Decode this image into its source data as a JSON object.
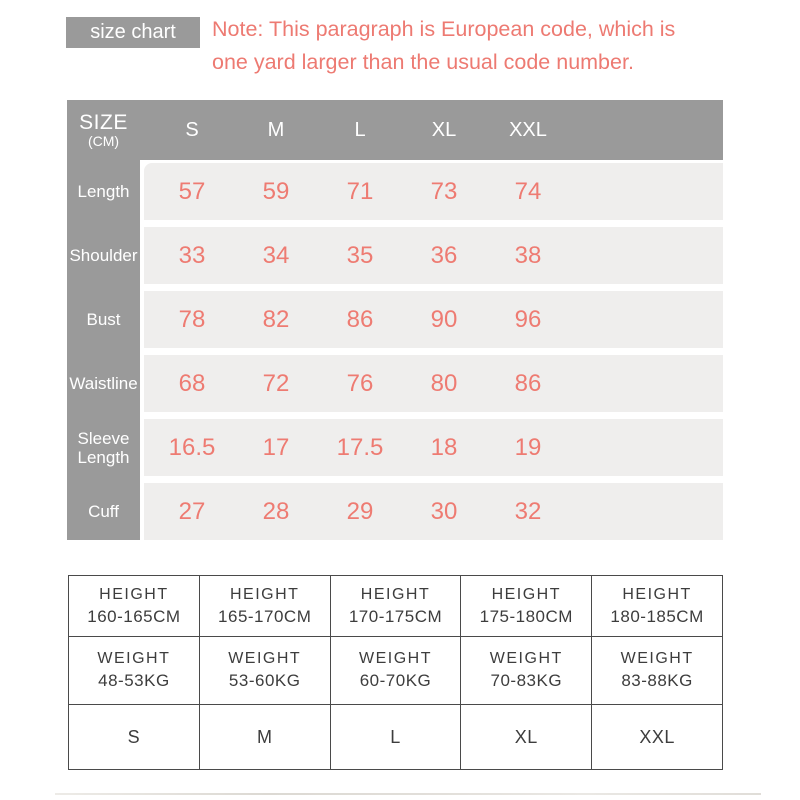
{
  "header": {
    "badge": "size chart",
    "note_line1": "Note: This paragraph is European code, which is",
    "note_line2": "one yard larger than the usual code number."
  },
  "size_table": {
    "corner_title": "SIZE",
    "corner_subtitle": "(CM)",
    "columns": [
      "S",
      "M",
      "L",
      "XL",
      "XXL"
    ],
    "rows": [
      {
        "label": "Length",
        "values": [
          "57",
          "59",
          "71",
          "73",
          "74"
        ]
      },
      {
        "label": "Shoulder",
        "values": [
          "33",
          "34",
          "35",
          "36",
          "38"
        ]
      },
      {
        "label": "Bust",
        "values": [
          "78",
          "82",
          "86",
          "90",
          "96"
        ]
      },
      {
        "label": "Waistline",
        "values": [
          "68",
          "72",
          "76",
          "80",
          "86"
        ]
      },
      {
        "label": "Sleeve Length",
        "values": [
          "16.5",
          "17",
          "17.5",
          "18",
          "19"
        ]
      },
      {
        "label": "Cuff",
        "values": [
          "27",
          "28",
          "29",
          "30",
          "32"
        ]
      }
    ]
  },
  "fit_table": {
    "cells": [
      {
        "height_label": "HEIGHT",
        "height": "160-165CM",
        "weight_label": "WEIGHT",
        "weight": "48-53KG",
        "size": "S"
      },
      {
        "height_label": "HEIGHT",
        "height": "165-170CM",
        "weight_label": "WEIGHT",
        "weight": "53-60KG",
        "size": "M"
      },
      {
        "height_label": "HEIGHT",
        "height": "170-175CM",
        "weight_label": "WEIGHT",
        "weight": "60-70KG",
        "size": "L"
      },
      {
        "height_label": "HEIGHT",
        "height": "175-180CM",
        "weight_label": "WEIGHT",
        "weight": "70-83KG",
        "size": "XL"
      },
      {
        "height_label": "HEIGHT",
        "height": "180-185CM",
        "weight_label": "WEIGHT",
        "weight": "83-88KG",
        "size": "XXL"
      }
    ]
  },
  "colors": {
    "gray": "#9a9a9a",
    "row_bg": "#efeeed",
    "accent_salmon": "#ed7a72",
    "dark_text": "#3d3d3d",
    "table_border": "#4a4a4a"
  }
}
